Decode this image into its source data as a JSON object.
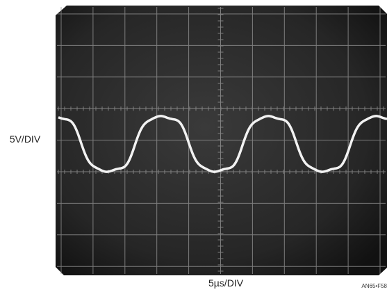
{
  "vertical_scale": "5V/DIV",
  "horizontal_scale": "5µs/DIV",
  "figure_id": "AN65•F58"
}
